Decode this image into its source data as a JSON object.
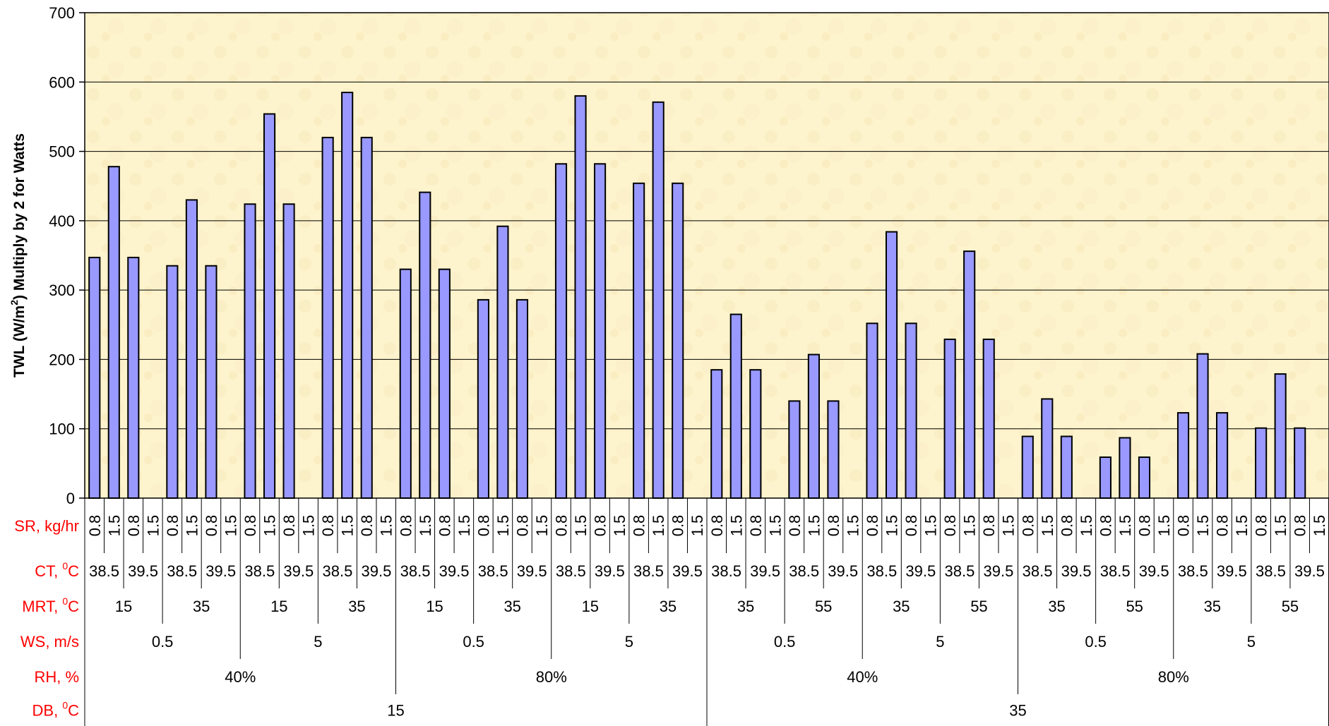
{
  "chart_data": {
    "type": "bar",
    "ylabel": "TWL (W/m2) Multiply by 2 for Watts",
    "ylim": [
      0,
      700
    ],
    "yticks": [
      0,
      100,
      200,
      300,
      400,
      500,
      600,
      700
    ],
    "grid": true,
    "legend": "none",
    "colors": {
      "bar": "#9999ff",
      "plot_background": "#fdf3cc",
      "row_label": "#ff0000"
    },
    "category_levels": [
      {
        "label": "SR, kg/hr",
        "values": [
          "0.8",
          "1.5"
        ]
      },
      {
        "label": "CT, ⁰C",
        "values": [
          "38.5",
          "39.5"
        ]
      },
      {
        "label": "MRT, ⁰C",
        "groups": [
          [
            "15",
            "35"
          ],
          [
            "15",
            "35"
          ],
          [
            "15",
            "35"
          ],
          [
            "15",
            "35"
          ],
          [
            "35",
            "55"
          ],
          [
            "35",
            "55"
          ],
          [
            "35",
            "55"
          ],
          [
            "35",
            "55"
          ]
        ]
      },
      {
        "label": "WS, m/s",
        "values": [
          "0.5",
          "5"
        ]
      },
      {
        "label": "RH, %",
        "values": [
          "40%",
          "80%"
        ]
      },
      {
        "label": "DB, ⁰C",
        "values": [
          "15",
          "35"
        ]
      }
    ],
    "values": [
      347,
      478,
      347,
      0,
      335,
      430,
      335,
      0,
      424,
      554,
      424,
      0,
      520,
      585,
      520,
      0,
      330,
      441,
      330,
      0,
      286,
      392,
      286,
      0,
      482,
      580,
      482,
      0,
      454,
      571,
      454,
      0,
      185,
      265,
      185,
      0,
      140,
      207,
      140,
      0,
      252,
      384,
      252,
      0,
      229,
      356,
      229,
      0,
      89,
      143,
      89,
      0,
      59,
      87,
      59,
      0,
      123,
      208,
      123,
      0,
      101,
      179,
      101,
      0
    ]
  }
}
